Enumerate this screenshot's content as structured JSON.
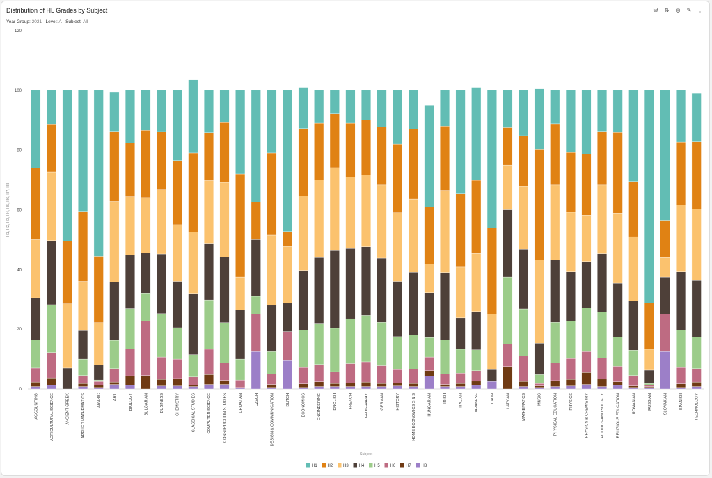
{
  "page": {
    "title": "Distribution of HL Grades by Subject",
    "filters": [
      {
        "key": "Year Group:",
        "value": "2021"
      },
      {
        "key": "Level:",
        "value": "A"
      },
      {
        "key": "Subject:",
        "value": "All"
      }
    ],
    "toolbar": [
      {
        "name": "database-icon",
        "glyph": "⛁"
      },
      {
        "name": "sort-icon",
        "glyph": "⇅"
      },
      {
        "name": "target-icon",
        "glyph": "◎"
      },
      {
        "name": "pin-icon",
        "glyph": "✎"
      },
      {
        "name": "more-icon",
        "glyph": "⋮"
      }
    ]
  },
  "chart_data": {
    "type": "bar",
    "stacked": true,
    "title": "Distribution of HL Grades by Subject",
    "xlabel": "Subject",
    "ylabel": "H1, H2, H3, H4, H5, H6, H7, H8",
    "ylim": [
      0,
      120
    ],
    "yticks": [
      0,
      20,
      40,
      60,
      80,
      100,
      120
    ],
    "grid": false,
    "legend_position": "bottom-center",
    "colors": {
      "H1": "#62bdb4",
      "H2": "#e08214",
      "H3": "#fbc26e",
      "H4": "#4e4039",
      "H5": "#9ccc8a",
      "H6": "#be6b82",
      "H7": "#6f3a13",
      "H8": "#9c7fc8"
    },
    "categories": [
      "ACCOUNTING",
      "AGRICULTURAL SCIENCE",
      "ANCIENT GREEK",
      "APPLIED MATHEMATICS",
      "ARABIC",
      "ART",
      "BIOLOGY",
      "BULGARIAN",
      "BUSINESS",
      "CHEMISTRY",
      "CLASSICAL STUDIES",
      "COMPUTER SCIENCE",
      "CONSTRUCTION STUDIES",
      "CROATIAN",
      "CZECH",
      "DESIGN & COMMUNICATION",
      "DUTCH",
      "ECONOMICS",
      "ENGINEERING",
      "ENGLISH",
      "FRENCH",
      "GEOGRAPHY",
      "GERMAN",
      "HISTORY",
      "HOME ECONOMICS S & S",
      "HUNGARIAN",
      "IRISH",
      "ITALIAN",
      "JAPANESE",
      "LATIN",
      "LATVIAN",
      "MATHEMATICS",
      "MUSIC",
      "PHYSICAL EDUCATION",
      "PHYSICS",
      "PHYSICS & CHEMISTRY",
      "POLITICS AND SOCIETY",
      "RELIGIOUS EDUCATION",
      "ROMANIAN",
      "RUSSIAN",
      "SLOVAKIAN",
      "SPANISH",
      "TECHNOLOGY"
    ],
    "series": [
      {
        "name": "H8",
        "values": [
          0.8,
          1.2,
          0,
          0.8,
          0.5,
          1.5,
          1.2,
          0,
          1,
          1,
          0.8,
          1.5,
          1.5,
          0.5,
          12.5,
          0.5,
          9.5,
          0.5,
          0.8,
          0.8,
          0.8,
          0.8,
          0.8,
          1,
          0.8,
          4.3,
          0.8,
          0.8,
          1.2,
          2.5,
          0,
          0.8,
          0.5,
          0.8,
          1,
          1.5,
          0.8,
          1.2,
          0.5,
          0.5,
          12.5,
          0.5,
          0.8
        ]
      },
      {
        "name": "H7",
        "values": [
          1.5,
          2.5,
          0,
          1,
          0.8,
          0.8,
          3.2,
          4.5,
          2.2,
          2.5,
          0.5,
          3.3,
          1.4,
          0,
          0,
          1,
          0,
          1.2,
          1.6,
          1,
          1.2,
          1.5,
          1,
          1,
          1,
          1.8,
          0.7,
          1,
          1.4,
          0,
          7.5,
          1.7,
          0.5,
          2,
          2.2,
          4,
          2.5,
          1.2,
          0.5,
          0.3,
          0,
          1.2,
          1.5
        ]
      },
      {
        "name": "H6",
        "values": [
          4.7,
          8.5,
          0,
          2.7,
          1.2,
          4.5,
          9,
          18.3,
          7.5,
          6.5,
          2.7,
          8.5,
          5.8,
          2.5,
          12.5,
          3.5,
          9.7,
          5.5,
          5.8,
          4,
          6.5,
          6.8,
          6,
          4.5,
          4.8,
          4.6,
          3.5,
          3.5,
          3.5,
          0,
          7.5,
          8.5,
          0.8,
          6,
          7,
          7,
          7,
          5.2,
          3.5,
          0.5,
          12.5,
          5.5,
          4.5
        ]
      },
      {
        "name": "H5",
        "values": [
          9.5,
          16,
          0,
          5.5,
          0.5,
          9.5,
          13.5,
          9.3,
          14.5,
          10.5,
          7.5,
          16.5,
          13.5,
          7,
          6,
          7.5,
          0,
          12.5,
          13.8,
          14.5,
          15,
          15.5,
          14.5,
          11,
          11.5,
          6.5,
          11.5,
          8,
          7,
          0,
          22.5,
          15.8,
          3,
          13.5,
          12.5,
          14.7,
          15.5,
          9.8,
          8.5,
          0.5,
          0,
          12.5,
          10.5
        ]
      },
      {
        "name": "H4",
        "values": [
          14,
          21.5,
          7,
          9.5,
          5,
          19.5,
          18,
          13.5,
          20,
          15.5,
          20.5,
          19,
          22,
          16.5,
          19,
          15.5,
          9.5,
          20,
          22,
          26,
          23.5,
          23,
          21.5,
          18.5,
          21,
          15,
          22.5,
          10.5,
          12.8,
          4,
          22.5,
          20,
          10.5,
          21,
          16.5,
          15.5,
          19.5,
          18,
          16.5,
          4.5,
          12.5,
          19.5,
          19
        ]
      },
      {
        "name": "H3",
        "values": [
          19.5,
          23,
          21.5,
          16.5,
          14.2,
          27,
          19.5,
          18.5,
          21.5,
          19,
          20.5,
          21,
          25,
          11,
          0,
          23.5,
          19,
          25,
          26,
          27.8,
          24,
          24,
          24.5,
          23,
          24.5,
          9.7,
          27.5,
          17,
          19.5,
          18.5,
          15,
          21,
          28,
          25,
          20,
          15.5,
          23,
          23.5,
          21.5,
          7,
          6.5,
          22.5,
          24
        ]
      },
      {
        "name": "H2",
        "values": [
          24,
          16,
          21,
          23.5,
          22.2,
          23.5,
          18,
          22.5,
          19.5,
          21.5,
          26.5,
          16,
          20,
          34.5,
          12.5,
          27.5,
          5,
          22.5,
          19,
          18,
          18,
          18.5,
          19.5,
          23,
          23.5,
          19,
          21.5,
          24.5,
          24.5,
          29,
          12.5,
          17,
          37,
          20.5,
          20,
          20.5,
          18,
          27,
          18.5,
          15.5,
          12.5,
          21,
          22.5
        ]
      },
      {
        "name": "H1",
        "values": [
          26,
          11.3,
          50.5,
          40.5,
          55.6,
          13.2,
          17.6,
          13.5,
          13.8,
          23.5,
          24.5,
          14.2,
          10.8,
          28,
          37.5,
          21,
          47.3,
          13.8,
          11,
          7.9,
          11,
          9.9,
          12.2,
          18,
          12.9,
          34.1,
          12,
          34.7,
          31.1,
          46,
          12.5,
          15.2,
          20.2,
          11.2,
          20.8,
          21.3,
          13.7,
          14.1,
          30.5,
          71.2,
          43.5,
          17.3,
          16.2
        ]
      }
    ]
  }
}
